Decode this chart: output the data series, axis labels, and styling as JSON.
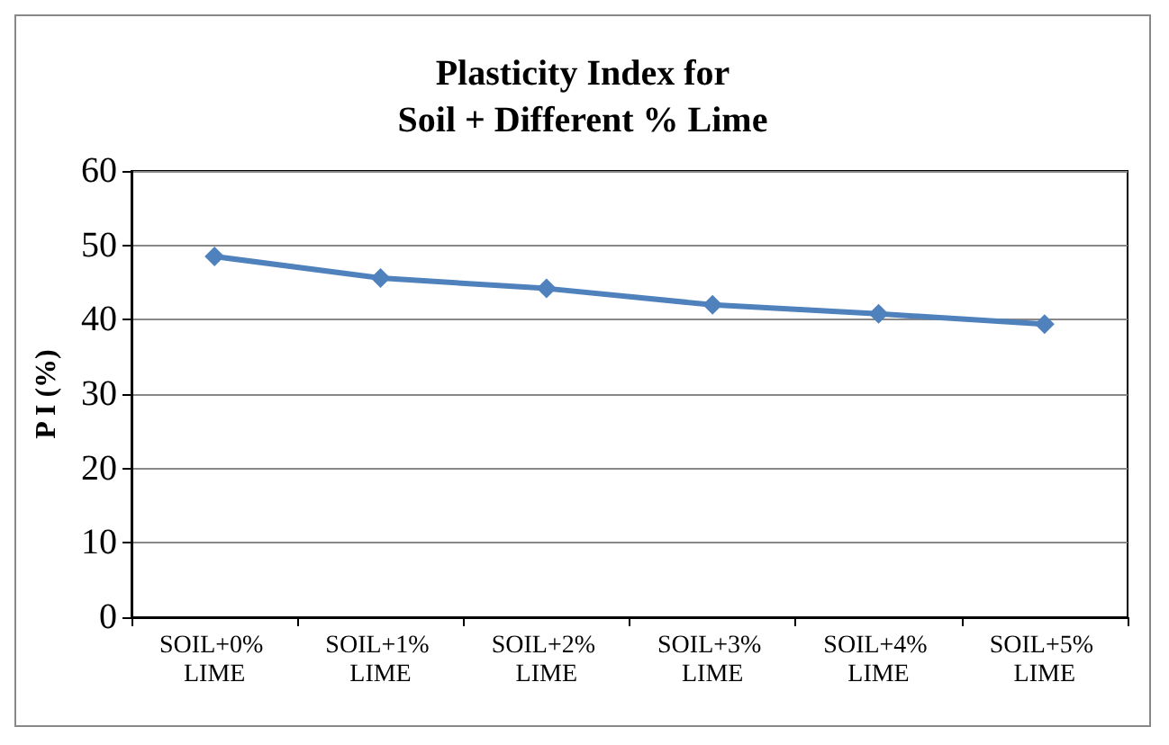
{
  "chart_data": {
    "type": "line",
    "title": "Plasticity Index for\nSoil + Different % Lime",
    "ylabel": "P I (%)",
    "categories": [
      "SOIL+0% LIME",
      "SOIL+1% LIME",
      "SOIL+2% LIME",
      "SOIL+3% LIME",
      "SOIL+4% LIME",
      "SOIL+5% LIME"
    ],
    "series": [
      {
        "color": "#4f81bd",
        "values": [
          48.5,
          45.6,
          44.2,
          42.0,
          40.8,
          39.4
        ]
      }
    ],
    "ylim": [
      0,
      60
    ],
    "yticks": [
      0,
      10,
      20,
      30,
      40,
      50,
      60
    ],
    "grid": "y",
    "marker": "diamond",
    "line_style": "solid"
  }
}
